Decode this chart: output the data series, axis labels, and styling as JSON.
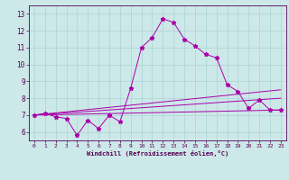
{
  "xlabel": "Windchill (Refroidissement éolien,°C)",
  "background_color": "#cde8e8",
  "line_color": "#aa00aa",
  "xlim": [
    -0.5,
    23.5
  ],
  "ylim": [
    5.5,
    13.5
  ],
  "yticks": [
    6,
    7,
    8,
    9,
    10,
    11,
    12,
    13
  ],
  "xticks": [
    0,
    1,
    2,
    3,
    4,
    5,
    6,
    7,
    8,
    9,
    10,
    11,
    12,
    13,
    14,
    15,
    16,
    17,
    18,
    19,
    20,
    21,
    22,
    23
  ],
  "main_line_x": [
    0,
    1,
    2,
    3,
    4,
    5,
    6,
    7,
    8,
    9,
    10,
    11,
    12,
    13,
    14,
    15,
    16,
    17,
    18,
    19,
    20,
    21,
    22,
    23
  ],
  "main_line_y": [
    7.0,
    7.1,
    6.9,
    6.8,
    5.8,
    6.7,
    6.2,
    7.0,
    6.6,
    8.6,
    11.0,
    11.6,
    12.7,
    12.5,
    11.5,
    11.1,
    10.6,
    10.4,
    8.8,
    8.4,
    7.4,
    7.9,
    7.3,
    7.3
  ],
  "line1_x": [
    0,
    23
  ],
  "line1_y": [
    7.0,
    7.3
  ],
  "line2_x": [
    0,
    23
  ],
  "line2_y": [
    7.0,
    8.0
  ],
  "line3_x": [
    0,
    23
  ],
  "line3_y": [
    7.0,
    8.5
  ]
}
